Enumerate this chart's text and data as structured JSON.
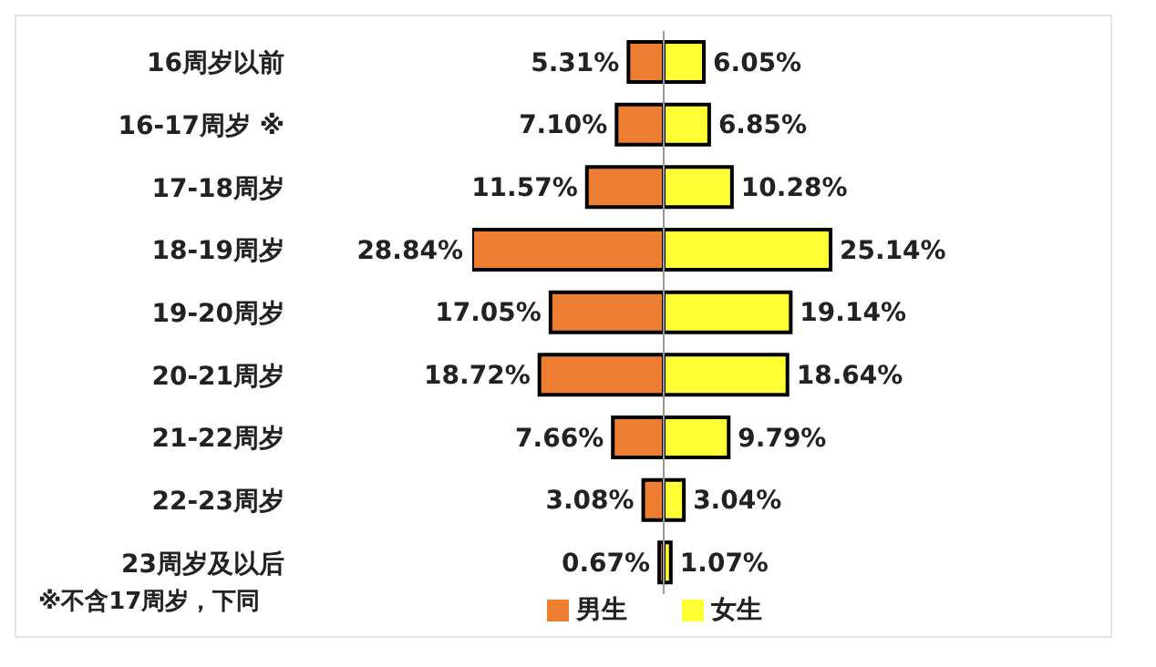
{
  "chart_data": [
    {
      "type": "bar",
      "orientation": "horizontal",
      "categories": [
        "16周岁以前",
        "16-17周岁 ※",
        "17-18周岁",
        "18-19周岁",
        "19-20周岁",
        "20-21周岁",
        "21-22周岁",
        "22-23周岁",
        "23周岁及以后"
      ],
      "tick_labels": "y",
      "series": [
        {
          "name": "男生",
          "color": "#ed7d31",
          "values": [
            5.31,
            7.1,
            11.57,
            28.84,
            17.05,
            18.72,
            7.66,
            3.08,
            0.67
          ],
          "value_labels": [
            "5.31%",
            "7.10%",
            "11.57%",
            "28.84%",
            "17.05%",
            "18.72%",
            "7.66%",
            "3.08%",
            "0.67%"
          ]
        }
      ],
      "legend": "bottom",
      "annotations": [
        "※不含17周岁，下同"
      ]
    },
    {
      "type": "bar",
      "orientation": "horizontal",
      "categories": [
        null,
        null,
        null,
        null,
        null,
        null,
        null,
        null,
        null
      ],
      "tick_labels": false,
      "series": [
        {
          "name": "女生",
          "color": "#ffff33",
          "values": [
            6.05,
            6.85,
            10.28,
            25.14,
            19.14,
            18.64,
            9.79,
            3.04,
            1.07
          ],
          "value_labels": [
            "6.05%",
            "6.85%",
            "10.28%",
            "25.14%",
            "19.14%",
            "18.64%",
            "9.79%",
            "3.04%",
            "1.07%"
          ]
        }
      ],
      "legend": "bottom"
    }
  ]
}
